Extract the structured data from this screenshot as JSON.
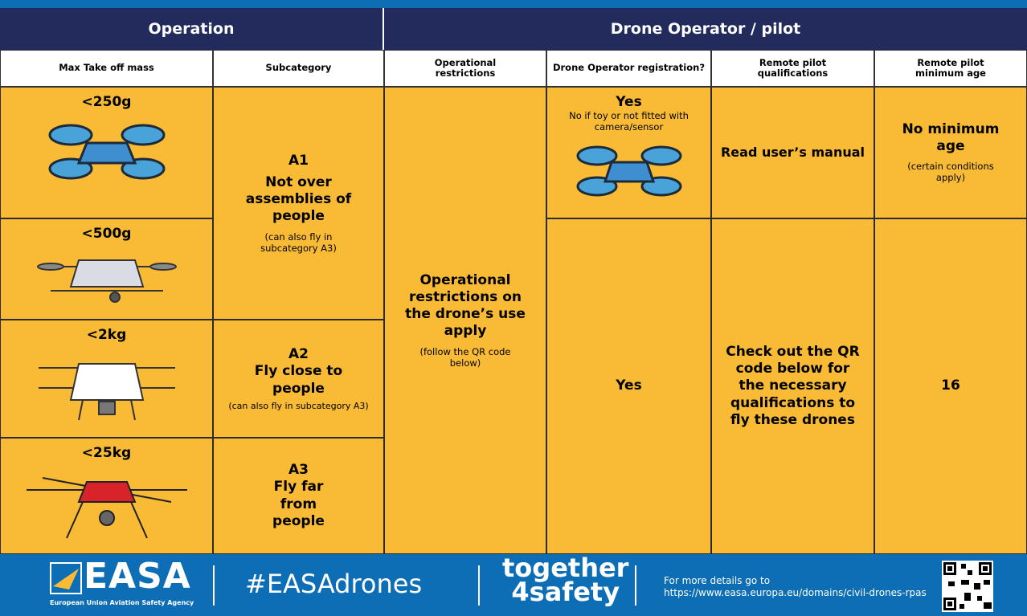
{
  "header": {
    "operation": "Operation",
    "drone_operator": "Drone Operator / pilot"
  },
  "columns": [
    "Max Take off mass",
    "Subcategory",
    "Operational restrictions",
    "Drone Operator registration?",
    "Remote pilot qualifications",
    "Remote pilot minimum age"
  ],
  "mass": [
    "<250g",
    "<500g",
    "<2kg",
    "<25kg"
  ],
  "subcategories": [
    {
      "code": "A1",
      "title": "Not over assemblies of people",
      "note": "(can also fly in subcategory A3)"
    },
    {
      "code": "A2",
      "title": "Fly close to people",
      "note": "(can also fly in subcategory A3)"
    },
    {
      "code": "A3",
      "title": "Fly far from people"
    }
  ],
  "restrictions": {
    "title": "Operational restrictions on the drone’s use apply",
    "note": "(follow the QR code below)"
  },
  "registration": [
    {
      "title": "Yes",
      "note": "No if toy or not fitted with camera/sensor"
    },
    {
      "title": "Yes"
    }
  ],
  "qualifications": [
    "Read user’s manual",
    "Check out the QR code below for the necessary qualifications to fly these drones"
  ],
  "min_age": [
    {
      "title": "No minimum age",
      "note": "(certain conditions apply)"
    },
    {
      "title": "16"
    }
  ],
  "footer": {
    "logo": "EASA",
    "agency": "European Union Aviation Safety Agency",
    "hashtag": "#EASAdrones",
    "slogan_top": "together",
    "slogan_bottom": "4safety",
    "more": "For more details go to",
    "url": "https://www.easa.europa.eu/domains/civil-drones-rpas"
  }
}
